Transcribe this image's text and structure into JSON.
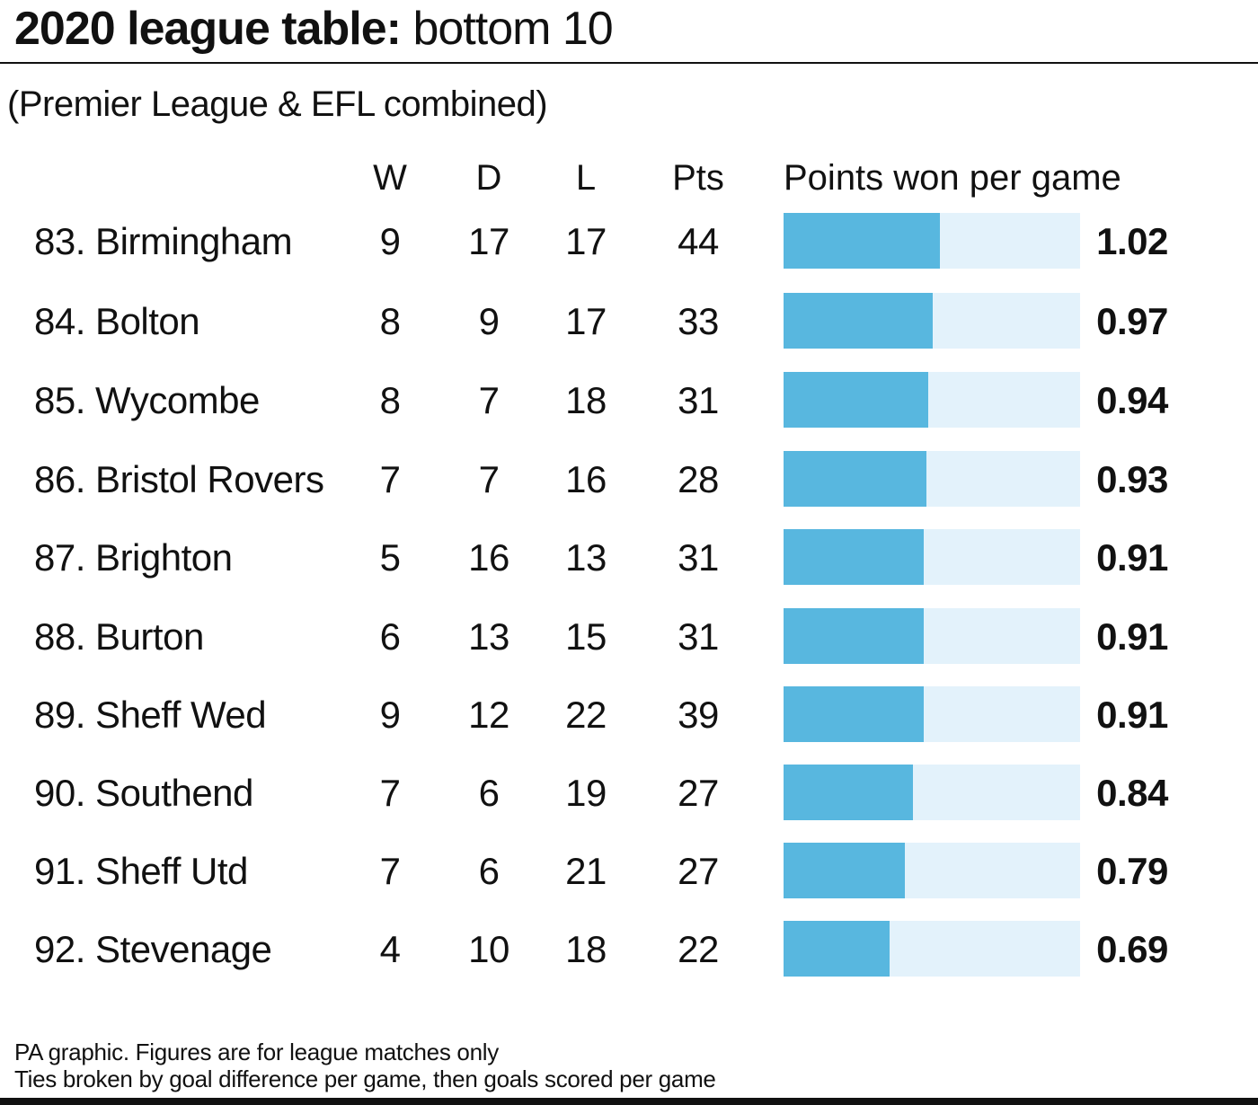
{
  "title_bold": "2020 league table:",
  "title_light": "bottom 10",
  "subtitle": "(Premier League & EFL combined)",
  "columns": {
    "w": "W",
    "d": "D",
    "l": "L",
    "pts": "Pts",
    "ppg": "Points won per game"
  },
  "colors": {
    "bar": "#58b7df",
    "bar_track": "#e3f2fb"
  },
  "chart_data": {
    "type": "bar",
    "categories": [
      "83. Birmingham",
      "84. Bolton",
      "85. Wycombe",
      "86. Bristol Rovers",
      "87. Brighton",
      "88. Burton",
      "89. Sheff Wed",
      "90. Southend",
      "91. Sheff Utd",
      "92. Stevenage"
    ],
    "values": [
      1.02,
      0.97,
      0.94,
      0.93,
      0.91,
      0.91,
      0.91,
      0.84,
      0.79,
      0.69
    ],
    "xlim": [
      0,
      1.93
    ],
    "orientation": "horizontal",
    "value_labels": [
      "1.02",
      "0.97",
      "0.94",
      "0.93",
      "0.91",
      "0.91",
      "0.91",
      "0.84",
      "0.79",
      "0.69"
    ]
  },
  "rows": [
    {
      "team": "83. Birmingham",
      "w": "9",
      "d": "17",
      "l": "17",
      "pts": "44",
      "ppg": "1.02"
    },
    {
      "team": "84. Bolton",
      "w": "8",
      "d": "9",
      "l": "17",
      "pts": "33",
      "ppg": "0.97"
    },
    {
      "team": "85. Wycombe",
      "w": "8",
      "d": "7",
      "l": "18",
      "pts": "31",
      "ppg": "0.94"
    },
    {
      "team": "86. Bristol Rovers",
      "w": "7",
      "d": "7",
      "l": "16",
      "pts": "28",
      "ppg": "0.93"
    },
    {
      "team": "87. Brighton",
      "w": "5",
      "d": "16",
      "l": "13",
      "pts": "31",
      "ppg": "0.91"
    },
    {
      "team": "88. Burton",
      "w": "6",
      "d": "13",
      "l": "15",
      "pts": "31",
      "ppg": "0.91"
    },
    {
      "team": "89. Sheff Wed",
      "w": "9",
      "d": "12",
      "l": "22",
      "pts": "39",
      "ppg": "0.91"
    },
    {
      "team": "90. Southend",
      "w": "7",
      "d": "6",
      "l": "19",
      "pts": "27",
      "ppg": "0.84"
    },
    {
      "team": "91. Sheff Utd",
      "w": "7",
      "d": "6",
      "l": "21",
      "pts": "27",
      "ppg": "0.79"
    },
    {
      "team": "92. Stevenage",
      "w": "4",
      "d": "10",
      "l": "18",
      "pts": "22",
      "ppg": "0.69"
    }
  ],
  "footnotes": [
    "PA graphic. Figures are for league matches only",
    "Ties broken by goal difference per game, then goals scored per game"
  ]
}
